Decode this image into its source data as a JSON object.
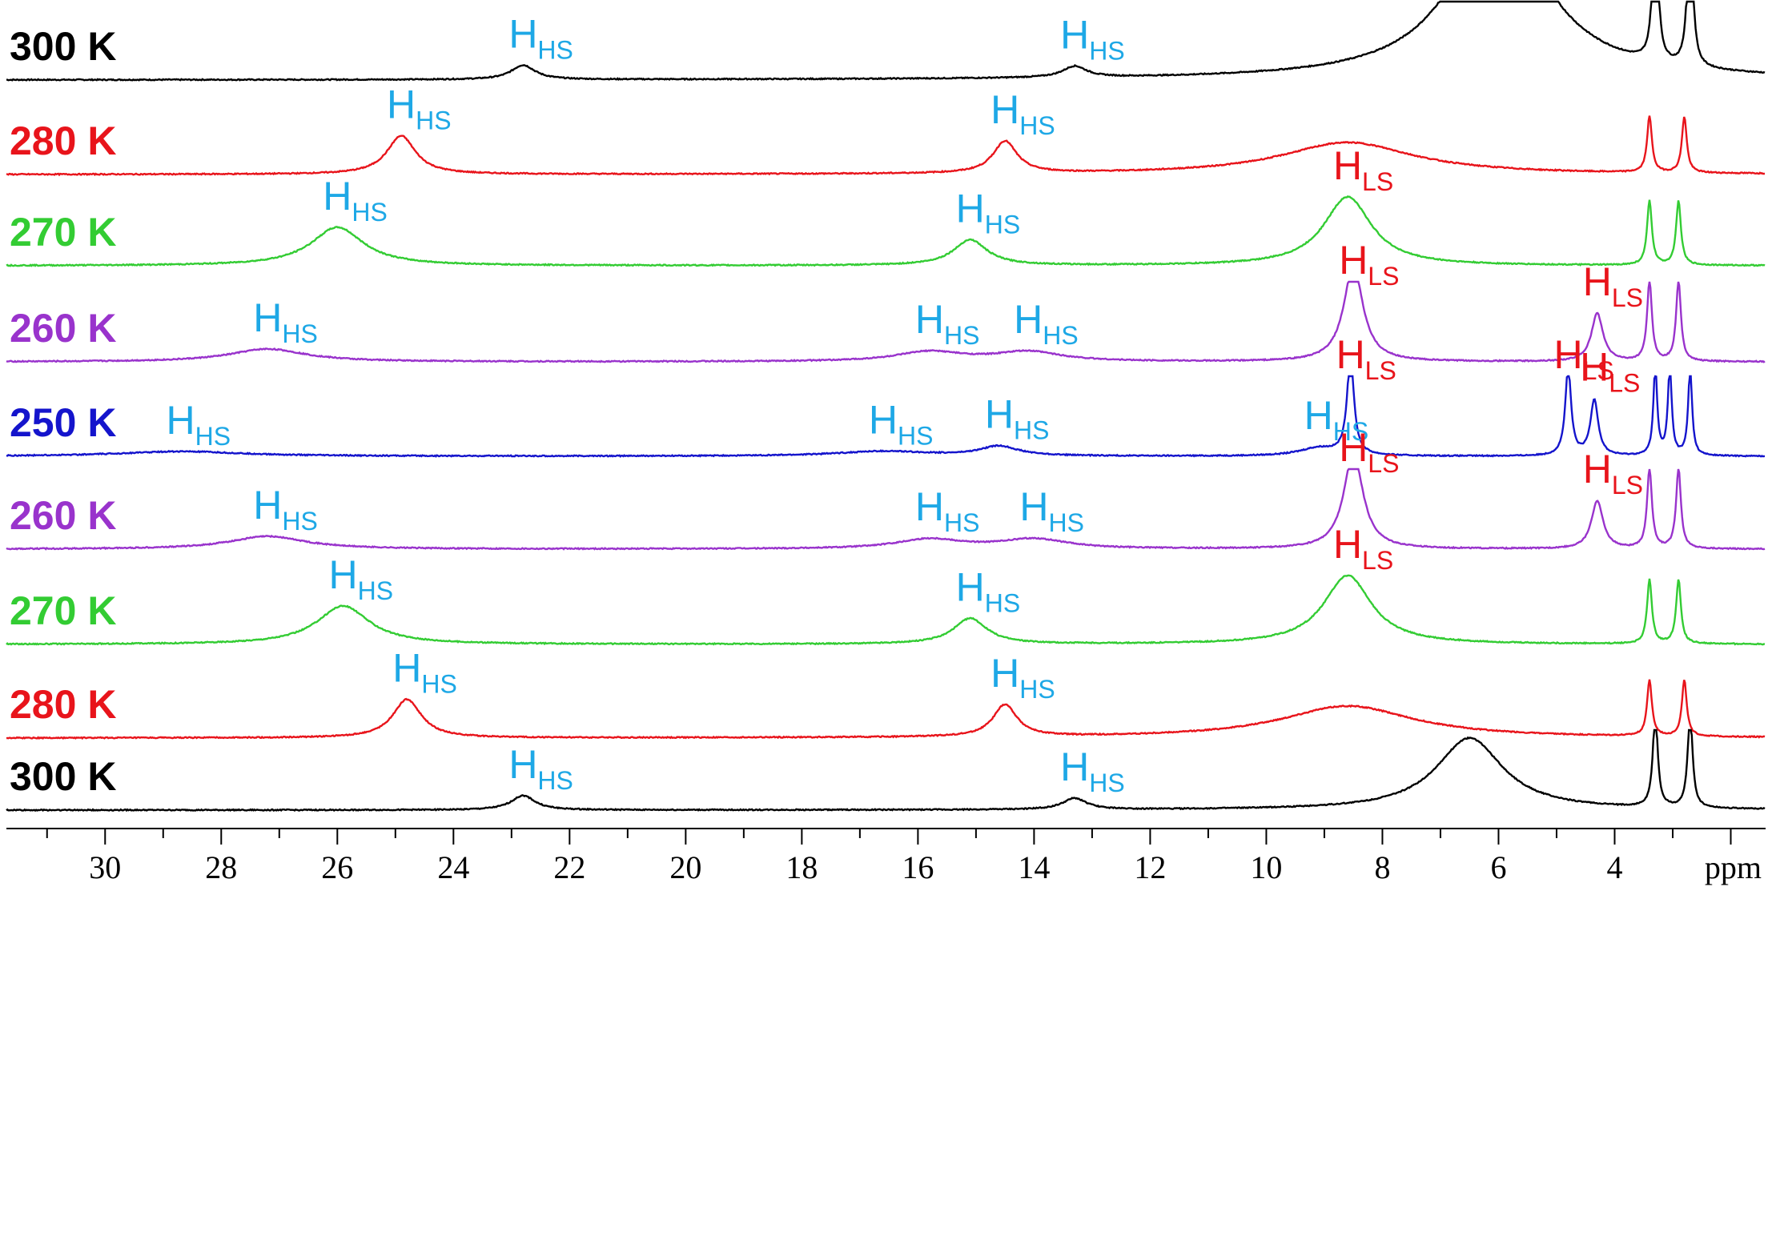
{
  "chart_data": {
    "type": "line",
    "title": "",
    "xlabel": "ppm",
    "ylabel": "",
    "xlim": [
      31.7,
      1.4
    ],
    "x_reversed": true,
    "x_ticks": [
      "30",
      "28",
      "26",
      "24",
      "22",
      "20",
      "18",
      "16",
      "14",
      "12",
      "10",
      "8",
      "6",
      "4"
    ],
    "x_tick_values": [
      30,
      28,
      26,
      24,
      22,
      20,
      18,
      16,
      14,
      12,
      10,
      8,
      6,
      4
    ],
    "colors": {
      "300 K": "#000000",
      "280 K": "#e8141b",
      "270 K": "#33cc33",
      "260 K": "#9933cc",
      "250 K": "#1414cc",
      "hs_label": "#1ea8e6",
      "ls_label": "#e8141b"
    },
    "series": [
      {
        "label": "300 K",
        "color": "#000000",
        "peaks": [
          {
            "ppm": 22.8,
            "height": 18,
            "width": 0.25,
            "label": "HS"
          },
          {
            "ppm": 13.3,
            "height": 14,
            "width": 0.25,
            "label": "HS"
          },
          {
            "ppm": 6.0,
            "height": 200,
            "width": 1.0,
            "label": null
          },
          {
            "ppm": 3.3,
            "height": 220,
            "width": 0.05,
            "label": null
          },
          {
            "ppm": 2.7,
            "height": 220,
            "width": 0.05,
            "label": null
          }
        ]
      },
      {
        "label": "280 K",
        "color": "#e8141b",
        "peaks": [
          {
            "ppm": 24.9,
            "height": 48,
            "width": 0.3,
            "label": "HS"
          },
          {
            "ppm": 14.5,
            "height": 40,
            "width": 0.25,
            "label": "HS"
          },
          {
            "ppm": 8.6,
            "height": 40,
            "width": 1.4,
            "label": null
          },
          {
            "ppm": 3.4,
            "height": 70,
            "width": 0.05,
            "label": null
          },
          {
            "ppm": 2.8,
            "height": 70,
            "width": 0.05,
            "label": null
          }
        ]
      },
      {
        "label": "270 K",
        "color": "#33cc33",
        "peaks": [
          {
            "ppm": 26.0,
            "height": 48,
            "width": 0.55,
            "label": "HS"
          },
          {
            "ppm": 15.1,
            "height": 32,
            "width": 0.35,
            "label": "HS"
          },
          {
            "ppm": 8.6,
            "height": 86,
            "width": 0.5,
            "label": "LS"
          },
          {
            "ppm": 3.4,
            "height": 80,
            "width": 0.05,
            "label": null
          },
          {
            "ppm": 2.9,
            "height": 80,
            "width": 0.05,
            "label": null
          }
        ]
      },
      {
        "label": "260 K",
        "color": "#9933cc",
        "peaks": [
          {
            "ppm": 27.2,
            "height": 16,
            "width": 0.8,
            "label": "HS"
          },
          {
            "ppm": 15.8,
            "height": 12,
            "width": 0.7,
            "label": "HS"
          },
          {
            "ppm": 14.1,
            "height": 12,
            "width": 0.7,
            "label": "HS"
          },
          {
            "ppm": 8.5,
            "height": 120,
            "width": 0.2,
            "label": "LS"
          },
          {
            "ppm": 4.3,
            "height": 60,
            "width": 0.12,
            "label": "LS"
          },
          {
            "ppm": 3.4,
            "height": 100,
            "width": 0.05,
            "label": null
          },
          {
            "ppm": 2.9,
            "height": 100,
            "width": 0.05,
            "label": null
          }
        ]
      },
      {
        "label": "250 K",
        "color": "#1414cc",
        "peaks": [
          {
            "ppm": 28.7,
            "height": 6,
            "width": 1.3,
            "label": "HS"
          },
          {
            "ppm": 16.6,
            "height": 6,
            "width": 1.0,
            "label": "HS"
          },
          {
            "ppm": 14.6,
            "height": 12,
            "width": 0.4,
            "label": "HS"
          },
          {
            "ppm": 9.1,
            "height": 10,
            "width": 0.4,
            "label": "HS"
          },
          {
            "ppm": 8.55,
            "height": 125,
            "width": 0.07,
            "label": "LS"
          },
          {
            "ppm": 4.8,
            "height": 110,
            "width": 0.06,
            "label": "LS"
          },
          {
            "ppm": 4.35,
            "height": 70,
            "width": 0.08,
            "label": "LS"
          },
          {
            "ppm": 3.3,
            "height": 110,
            "width": 0.04,
            "label": null
          },
          {
            "ppm": 3.05,
            "height": 110,
            "width": 0.04,
            "label": null
          },
          {
            "ppm": 2.7,
            "height": 110,
            "width": 0.04,
            "label": null
          }
        ]
      },
      {
        "label": "260 K",
        "color": "#9933cc",
        "peaks": [
          {
            "ppm": 27.2,
            "height": 16,
            "width": 0.8,
            "label": "HS"
          },
          {
            "ppm": 15.8,
            "height": 12,
            "width": 0.7,
            "label": "HS"
          },
          {
            "ppm": 14.0,
            "height": 12,
            "width": 0.7,
            "label": "HS"
          },
          {
            "ppm": 8.5,
            "height": 120,
            "width": 0.2,
            "label": "LS"
          },
          {
            "ppm": 4.3,
            "height": 60,
            "width": 0.12,
            "label": "LS"
          },
          {
            "ppm": 3.4,
            "height": 100,
            "width": 0.05,
            "label": null
          },
          {
            "ppm": 2.9,
            "height": 100,
            "width": 0.05,
            "label": null
          }
        ]
      },
      {
        "label": "270 K",
        "color": "#33cc33",
        "peaks": [
          {
            "ppm": 25.9,
            "height": 48,
            "width": 0.55,
            "label": "HS"
          },
          {
            "ppm": 15.1,
            "height": 32,
            "width": 0.35,
            "label": "HS"
          },
          {
            "ppm": 8.6,
            "height": 86,
            "width": 0.5,
            "label": "LS"
          },
          {
            "ppm": 3.4,
            "height": 80,
            "width": 0.05,
            "label": null
          },
          {
            "ppm": 2.9,
            "height": 80,
            "width": 0.05,
            "label": null
          }
        ]
      },
      {
        "label": "280 K",
        "color": "#e8141b",
        "peaks": [
          {
            "ppm": 24.8,
            "height": 48,
            "width": 0.3,
            "label": "HS"
          },
          {
            "ppm": 14.5,
            "height": 40,
            "width": 0.25,
            "label": "HS"
          },
          {
            "ppm": 8.6,
            "height": 40,
            "width": 1.4,
            "label": null
          },
          {
            "ppm": 3.4,
            "height": 70,
            "width": 0.05,
            "label": null
          },
          {
            "ppm": 2.8,
            "height": 70,
            "width": 0.05,
            "label": null
          }
        ]
      },
      {
        "label": "300 K",
        "color": "#000000",
        "peaks": [
          {
            "ppm": 22.8,
            "height": 18,
            "width": 0.25,
            "label": "HS"
          },
          {
            "ppm": 13.3,
            "height": 14,
            "width": 0.25,
            "label": "HS"
          },
          {
            "ppm": 6.5,
            "height": 90,
            "width": 0.7,
            "label": null
          },
          {
            "ppm": 3.3,
            "height": 120,
            "width": 0.05,
            "label": null
          },
          {
            "ppm": 2.7,
            "height": 120,
            "width": 0.05,
            "label": null
          }
        ]
      }
    ]
  },
  "peak_label": {
    "main": "H",
    "HS": "HS",
    "LS": "LS"
  }
}
